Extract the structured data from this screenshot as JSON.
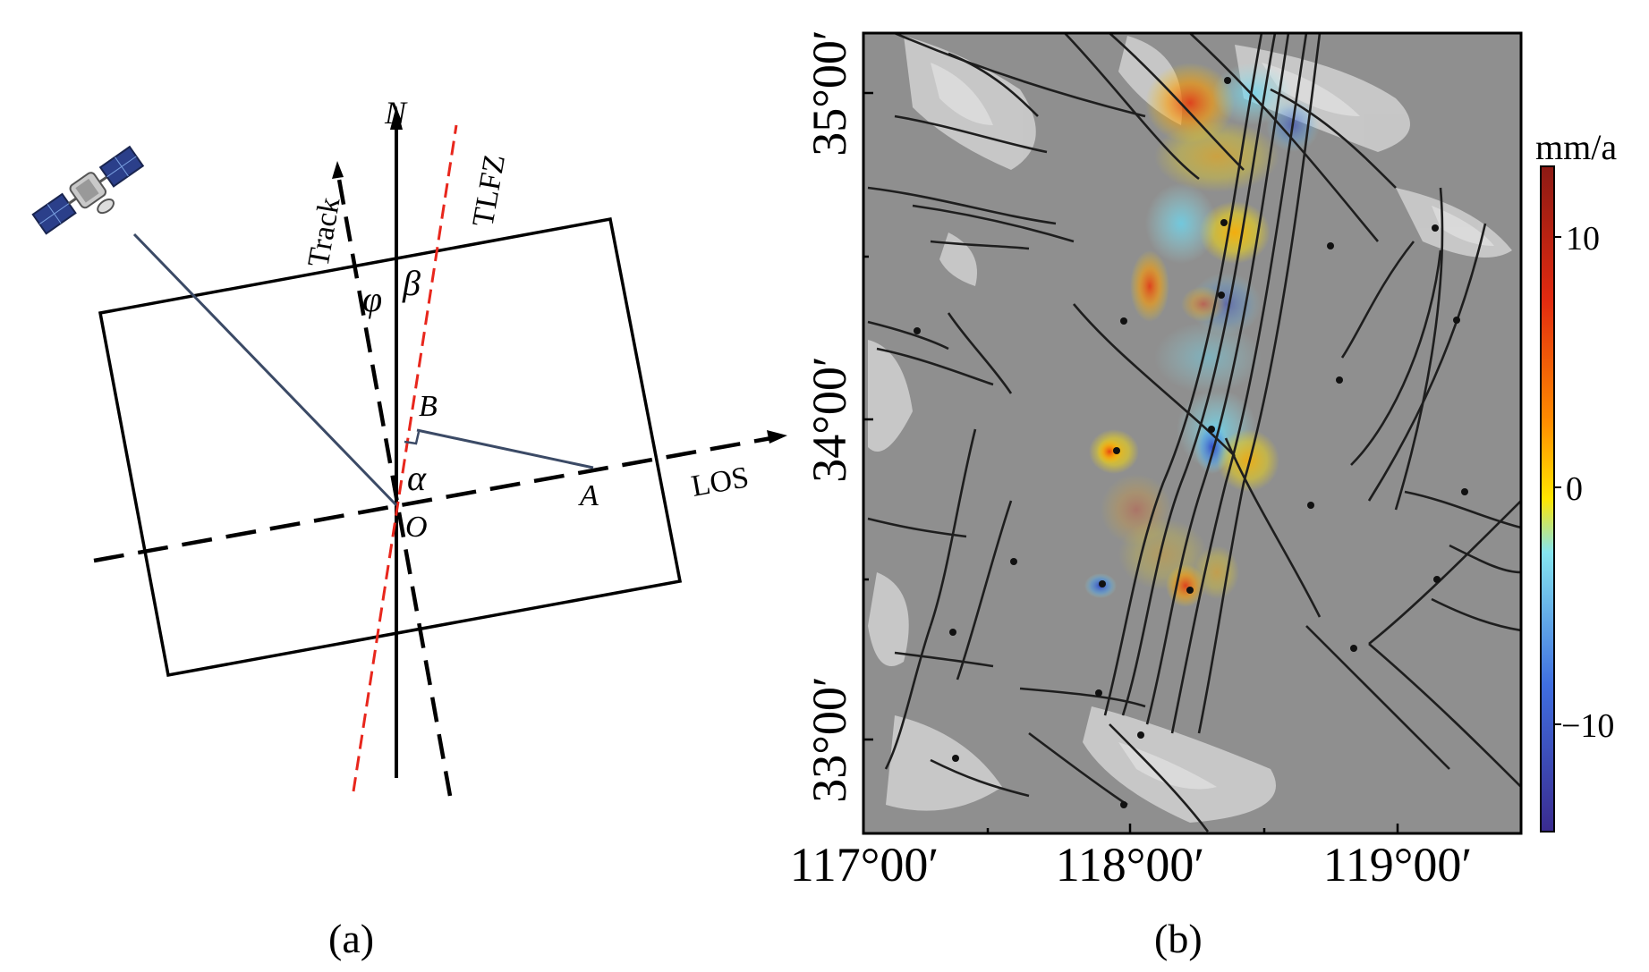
{
  "panel_a": {
    "caption": "(a)",
    "labels": {
      "north": "N",
      "track": "Track",
      "fault": "TLFZ",
      "los": "LOS",
      "phi": "φ",
      "beta": "β",
      "alpha": "α",
      "point_o": "O",
      "point_a": "A",
      "point_b": "B"
    },
    "icons": {
      "satellite": "satellite-icon"
    },
    "colors": {
      "fault": "#e8261c",
      "line": "#000000",
      "ray": "#3b4a66"
    }
  },
  "panel_b": {
    "caption": "(b)",
    "y_ticks": [
      "35°00′",
      "34°00′",
      "33°00′"
    ],
    "x_ticks": [
      "117°00′",
      "118°00′",
      "119°00′"
    ],
    "colorbar": {
      "unit": "mm/a",
      "ticks": [
        "10",
        "0",
        "−10"
      ],
      "colors": [
        "#3a2b8f",
        "#3f6ee0",
        "#86e6f0",
        "#ffe600",
        "#ff8a00",
        "#e02a10",
        "#8c1a14"
      ]
    },
    "colors": {
      "basemap": "#8f8f8f",
      "faults": "#1e1e1e"
    }
  }
}
